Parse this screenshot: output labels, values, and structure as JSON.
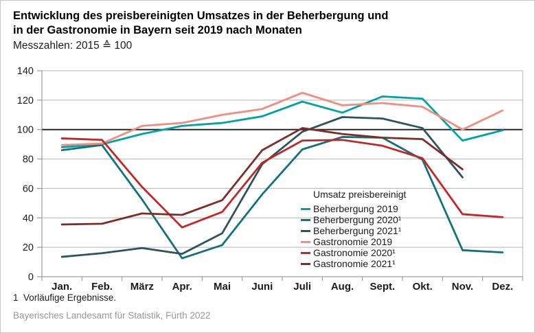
{
  "header": {
    "title_line1": "Entwicklung des preisbereinigten Umsatzes in der Beherbergung und",
    "title_line2": "in der Gastronomie in Bayern seit 2019 nach Monaten",
    "subtitle": "Messzahlen: 2015 ≙ 100"
  },
  "chart_data": {
    "type": "line",
    "title": "Entwicklung des preisbereinigten Umsatzes in der Beherbergung und in der Gastronomie in Bayern seit 2019 nach Monaten",
    "subtitle": "Messzahlen: 2015 ≙ 100",
    "categories": [
      "Jan.",
      "Feb.",
      "März",
      "Apr.",
      "Mai",
      "Juni",
      "Juli",
      "Aug.",
      "Sept.",
      "Okt.",
      "Nov.",
      "Dez."
    ],
    "ylim": [
      0,
      140
    ],
    "y_ticks": [
      0,
      20,
      40,
      60,
      80,
      100,
      120,
      140
    ],
    "grid": "horizontal",
    "reference_line": 100,
    "legend_title": "Umsatz preisbereinigt",
    "legend_position": "inside-lower-right",
    "series": [
      {
        "name": "Beherbergung 2019",
        "color": "#00a2a6",
        "values": [
          88,
          90,
          97,
          102.5,
          104.5,
          109,
          119,
          111.5,
          122.5,
          121,
          92.5,
          99.5
        ]
      },
      {
        "name": "Beherbergung 2020¹",
        "color": "#10717b",
        "values": [
          86,
          89.5,
          52.5,
          12.5,
          21.5,
          56,
          86.5,
          95,
          94.5,
          79.5,
          18,
          16.5
        ]
      },
      {
        "name": "Beherbergung 2021¹",
        "color": "#2d535c",
        "values": [
          13.5,
          16,
          19.5,
          15.5,
          29.5,
          76.5,
          98.5,
          108.5,
          107.5,
          101,
          67.5,
          null
        ]
      },
      {
        "name": "Gastronomie 2019",
        "color": "#f18d80",
        "values": [
          89.5,
          90.5,
          102.5,
          104.5,
          110,
          114,
          125,
          116.5,
          118,
          115.5,
          100,
          113
        ]
      },
      {
        "name": "Gastronomie 2020¹",
        "color": "#c42625",
        "values": [
          94,
          93,
          61,
          33.5,
          44,
          77.5,
          92.5,
          93,
          89,
          80.5,
          42.5,
          40.5
        ]
      },
      {
        "name": "Gastronomie 2021¹",
        "color": "#7e2c25",
        "values": [
          35.5,
          36,
          43,
          42,
          52,
          86,
          101,
          97,
          94.5,
          93.5,
          73,
          null
        ]
      }
    ]
  },
  "style": {
    "grid_color": "#b4b4b4",
    "axis_color": "#8a8a8a",
    "reference_line_color": "#262626",
    "label_color": "#1a1a1a"
  },
  "footnote": "1  Vorläufige Ergebnisse.",
  "source": "Bayerisches Landesamt für Statistik, Fürth 2022"
}
